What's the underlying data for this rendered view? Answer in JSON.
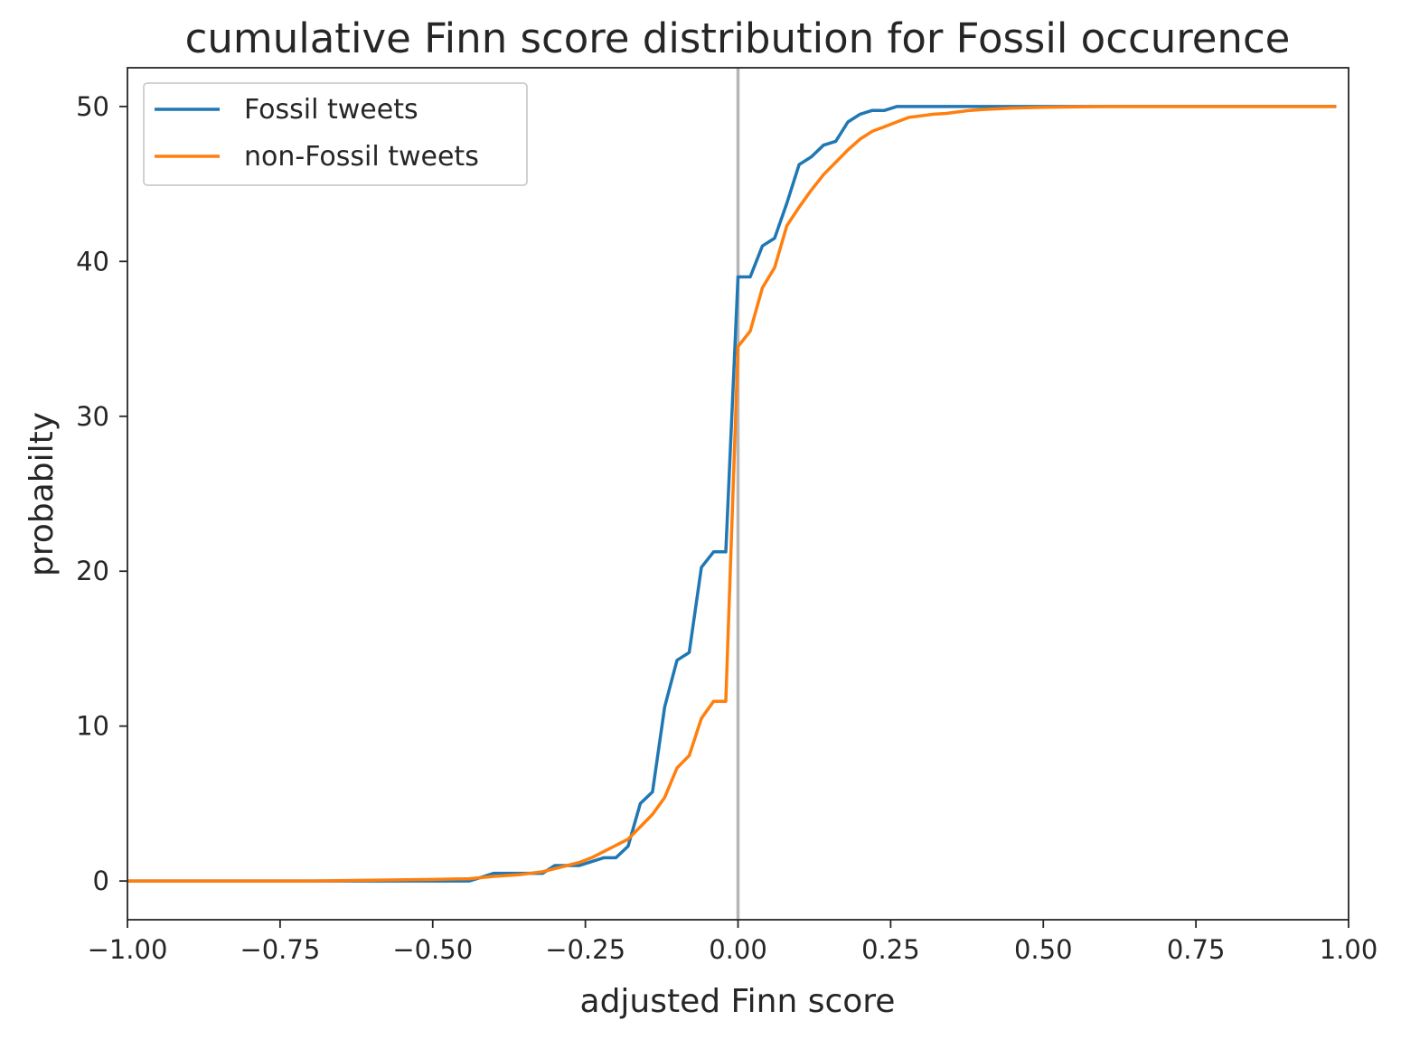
{
  "chart_data": {
    "type": "line",
    "title": "cumulative Finn score distribution for Fossil occurence",
    "xlabel": "adjusted Finn score",
    "ylabel": "probabilty",
    "xlim": [
      -1.0,
      1.0
    ],
    "ylim": [
      -2.5,
      52.5
    ],
    "xticks": [
      -1.0,
      -0.75,
      -0.5,
      -0.25,
      0.0,
      0.25,
      0.5,
      0.75,
      1.0
    ],
    "xtick_labels": [
      "−1.00",
      "−0.75",
      "−0.50",
      "−0.25",
      "0.00",
      "0.25",
      "0.50",
      "0.75",
      "1.00"
    ],
    "yticks": [
      0,
      10,
      20,
      30,
      40,
      50
    ],
    "ytick_labels": [
      "0",
      "10",
      "20",
      "30",
      "40",
      "50"
    ],
    "grid": false,
    "vline": {
      "x": 0.0,
      "color": "#b5b5b5"
    },
    "legend": {
      "position": "top-left"
    },
    "series": [
      {
        "name": "Fossil tweets",
        "color": "#1f77b4",
        "x": [
          -1.0,
          -0.5,
          -0.44,
          -0.42,
          -0.4,
          -0.38,
          -0.36,
          -0.34,
          -0.32,
          -0.3,
          -0.28,
          -0.26,
          -0.24,
          -0.22,
          -0.2,
          -0.18,
          -0.16,
          -0.14,
          -0.12,
          -0.1,
          -0.08,
          -0.06,
          -0.04,
          -0.02,
          0.0,
          0.02,
          0.04,
          0.06,
          0.08,
          0.1,
          0.12,
          0.14,
          0.16,
          0.18,
          0.2,
          0.22,
          0.24,
          0.26,
          0.28,
          0.3,
          0.5,
          0.98
        ],
        "y": [
          0,
          0,
          0,
          0.25,
          0.5,
          0.5,
          0.5,
          0.5,
          0.5,
          1.0,
          1.0,
          1.0,
          1.25,
          1.5,
          1.5,
          2.25,
          5.0,
          5.75,
          11.25,
          14.25,
          14.75,
          20.25,
          21.25,
          21.25,
          39.0,
          39.0,
          41.0,
          41.5,
          43.75,
          46.25,
          46.75,
          47.5,
          47.75,
          49.0,
          49.5,
          49.75,
          49.75,
          50.0,
          50.0,
          50.0,
          50.0,
          50.0
        ]
      },
      {
        "name": "non-Fossil tweets",
        "color": "#ff7f0e",
        "x": [
          -1.0,
          -0.7,
          -0.6,
          -0.5,
          -0.44,
          -0.4,
          -0.36,
          -0.32,
          -0.3,
          -0.28,
          -0.26,
          -0.24,
          -0.22,
          -0.2,
          -0.18,
          -0.16,
          -0.14,
          -0.12,
          -0.1,
          -0.08,
          -0.06,
          -0.04,
          -0.02,
          0.0,
          0.02,
          0.04,
          0.06,
          0.08,
          0.1,
          0.12,
          0.14,
          0.16,
          0.18,
          0.2,
          0.22,
          0.24,
          0.26,
          0.28,
          0.3,
          0.32,
          0.34,
          0.36,
          0.38,
          0.4,
          0.45,
          0.5,
          0.6,
          0.98
        ],
        "y": [
          0,
          0,
          0.05,
          0.1,
          0.15,
          0.3,
          0.4,
          0.6,
          0.8,
          1.0,
          1.2,
          1.5,
          1.9,
          2.3,
          2.7,
          3.5,
          4.3,
          5.4,
          7.3,
          8.1,
          10.5,
          11.6,
          11.6,
          34.5,
          35.5,
          38.3,
          39.6,
          42.3,
          43.5,
          44.6,
          45.6,
          46.4,
          47.2,
          47.9,
          48.4,
          48.7,
          49.0,
          49.3,
          49.4,
          49.5,
          49.55,
          49.65,
          49.75,
          49.8,
          49.9,
          49.95,
          50.0,
          50.0
        ]
      }
    ]
  }
}
